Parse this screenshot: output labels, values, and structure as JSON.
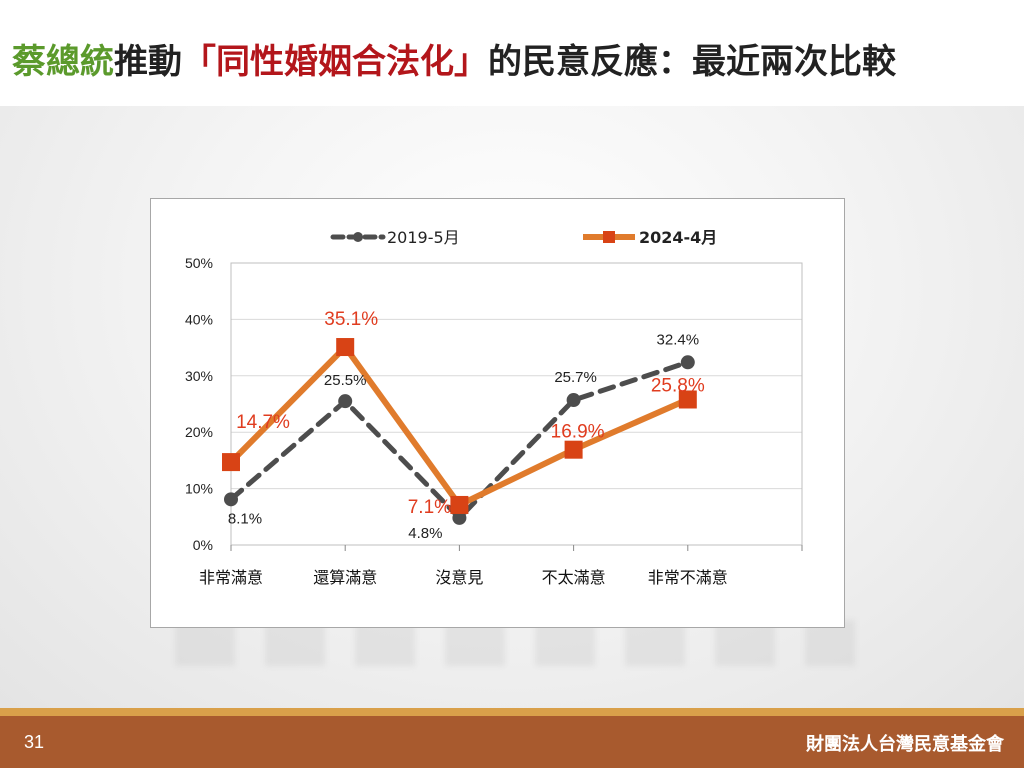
{
  "title": {
    "part1": "蔡總統",
    "part2": "推動",
    "part3": "「同性婚姻合法化」",
    "part4": "的民意反應：最近兩次比較"
  },
  "colors": {
    "green": "#5b9a2c",
    "red": "#b3161b",
    "series_2019": "#4d4d4d",
    "series_2024_line": "#e07b2c",
    "series_2024_marker": "#d84315",
    "series_2024_label": "#e03c1f",
    "footer": "#a85a2e",
    "footer_stripe": "#d9a04a"
  },
  "chart_data": {
    "type": "line",
    "categories": [
      "非常滿意",
      "還算滿意",
      "沒意見",
      "不太滿意",
      "非常不滿意"
    ],
    "series": [
      {
        "name": "2019-5月",
        "values": [
          8.1,
          25.5,
          4.8,
          25.7,
          32.4
        ],
        "labels": [
          "8.1%",
          "25.5%",
          "4.8%",
          "25.7%",
          "32.4%"
        ],
        "style": "dashed",
        "marker": "circle"
      },
      {
        "name": "2024-4月",
        "values": [
          14.7,
          35.1,
          7.1,
          16.9,
          25.8
        ],
        "labels": [
          "14.7%",
          "35.1%",
          "7.1%",
          "16.9%",
          "25.8%"
        ],
        "style": "solid",
        "marker": "square"
      }
    ],
    "yticks": [
      "0%",
      "10%",
      "20%",
      "30%",
      "40%",
      "50%"
    ],
    "ylim": [
      0,
      50
    ],
    "grid": true,
    "legend": "top"
  },
  "footer": {
    "page_number": "31",
    "organization": "財團法人台灣民意基金會"
  }
}
